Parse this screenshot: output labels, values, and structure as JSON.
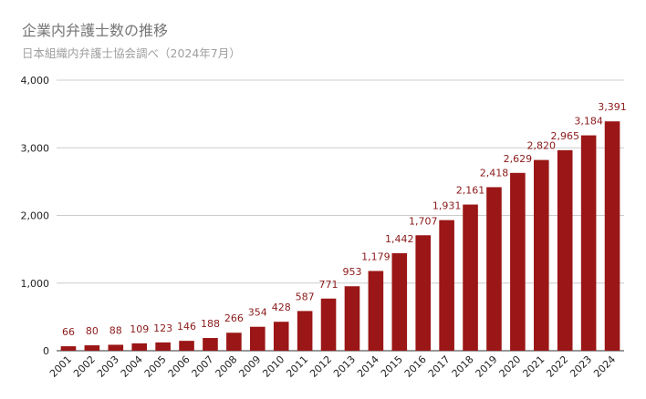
{
  "chart_data": {
    "type": "bar",
    "title": "企業内弁護士数の推移",
    "subtitle": "日本組織内弁護士協会調べ（2024年7月）",
    "xlabel": "",
    "ylabel": "",
    "ylim": [
      0,
      4000
    ],
    "yticks": [
      0,
      1000,
      2000,
      3000,
      4000
    ],
    "ytick_labels": [
      "0",
      "1,000",
      "2,000",
      "3,000",
      "4,000"
    ],
    "grid": true,
    "legend": "none",
    "bar_color": "#9b1616",
    "categories": [
      "2001",
      "2002",
      "2003",
      "2004",
      "2005",
      "2006",
      "2007",
      "2008",
      "2009",
      "2010",
      "2011",
      "2012",
      "2013",
      "2014",
      "2015",
      "2016",
      "2017",
      "2018",
      "2019",
      "2020",
      "2021",
      "2022",
      "2023",
      "2024"
    ],
    "values": [
      66,
      80,
      88,
      109,
      123,
      146,
      188,
      266,
      354,
      428,
      587,
      771,
      953,
      1179,
      1442,
      1707,
      1931,
      2161,
      2418,
      2629,
      2820,
      2965,
      3184,
      3391
    ],
    "value_labels": [
      "66",
      "80",
      "88",
      "109",
      "123",
      "146",
      "188",
      "266",
      "354",
      "428",
      "587",
      "771",
      "953",
      "1,179",
      "1,442",
      "1,707",
      "1,931",
      "2,161",
      "2,418",
      "2,629",
      "2,820",
      "2,965",
      "3,184",
      "3,391"
    ]
  }
}
